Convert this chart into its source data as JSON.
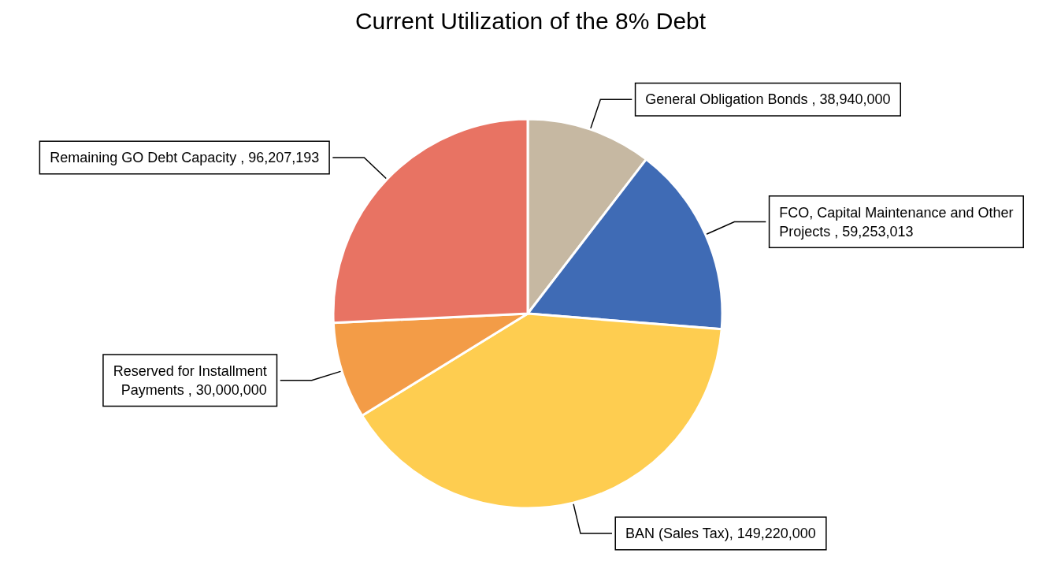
{
  "chart_data": {
    "type": "pie",
    "title": "Current Utilization of the 8% Debt",
    "categories": [
      "General Obligation Bonds ",
      "FCO, Capital Maintenance and Other Projects ",
      "BAN (Sales Tax)",
      "Reserved for Installment Payments ",
      "Remaining GO Debt Capacity "
    ],
    "values": [
      38940000,
      59253013,
      149220000,
      30000000,
      96207193
    ],
    "value_labels": [
      "38,940,000",
      "59,253,013",
      "149,220,000",
      "30,000,000",
      "96,207,193"
    ],
    "colors": [
      "#c6b8a2",
      "#3f6bb5",
      "#fecd50",
      "#f39c47",
      "#e87363"
    ],
    "legend": false
  }
}
